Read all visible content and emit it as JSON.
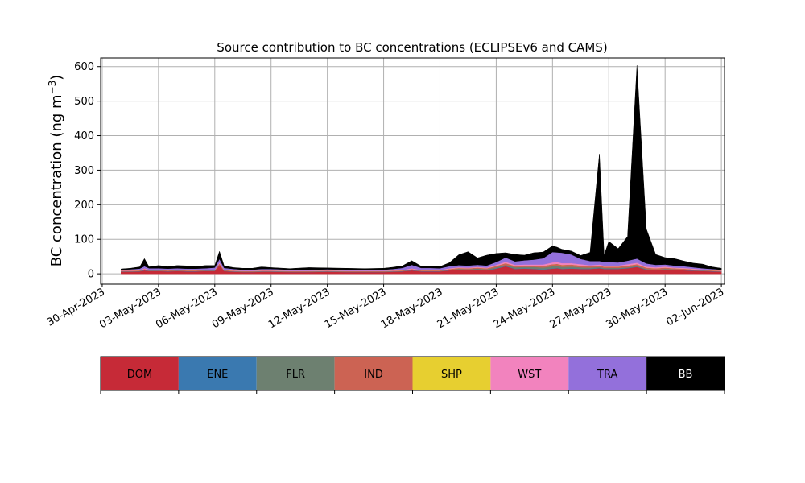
{
  "chart_data": {
    "type": "area",
    "title": "Source contribution to BC concentrations (ECLIPSEv6 and CAMS)",
    "ylabel": "BC concentration (ng m",
    "ylabel_superscript": "−3",
    "ylabel_close": ")",
    "xlabel": "",
    "ylim": [
      -30,
      625
    ],
    "xlim": [
      "2023-04-29T22:00",
      "2023-06-02T04:00"
    ],
    "grid": true,
    "stacked": true,
    "x_ticks": [
      {
        "date": "2023-04-30",
        "label": "30-Apr-2023"
      },
      {
        "date": "2023-05-03",
        "label": "03-May-2023"
      },
      {
        "date": "2023-05-06",
        "label": "06-May-2023"
      },
      {
        "date": "2023-05-09",
        "label": "09-May-2023"
      },
      {
        "date": "2023-05-12",
        "label": "12-May-2023"
      },
      {
        "date": "2023-05-15",
        "label": "15-May-2023"
      },
      {
        "date": "2023-05-18",
        "label": "18-May-2023"
      },
      {
        "date": "2023-05-21",
        "label": "21-May-2023"
      },
      {
        "date": "2023-05-24",
        "label": "24-May-2023"
      },
      {
        "date": "2023-05-27",
        "label": "27-May-2023"
      },
      {
        "date": "2023-05-30",
        "label": "30-May-2023"
      },
      {
        "date": "2023-06-02",
        "label": "02-Jun-2023"
      }
    ],
    "y_ticks": [
      0,
      100,
      200,
      300,
      400,
      500,
      600
    ],
    "x": [
      "2023-05-01T00:00",
      "2023-05-01T12:00",
      "2023-05-02T00:00",
      "2023-05-02T06:00",
      "2023-05-02T12:00",
      "2023-05-03T00:00",
      "2023-05-03T12:00",
      "2023-05-04T00:00",
      "2023-05-04T12:00",
      "2023-05-05T00:00",
      "2023-05-05T12:00",
      "2023-05-06T00:00",
      "2023-05-06T06:00",
      "2023-05-06T12:00",
      "2023-05-07T00:00",
      "2023-05-07T12:00",
      "2023-05-08T00:00",
      "2023-05-08T12:00",
      "2023-05-09T00:00",
      "2023-05-10T00:00",
      "2023-05-11T00:00",
      "2023-05-12T00:00",
      "2023-05-13T00:00",
      "2023-05-14T00:00",
      "2023-05-15T00:00",
      "2023-05-15T12:00",
      "2023-05-16T00:00",
      "2023-05-16T12:00",
      "2023-05-17T00:00",
      "2023-05-17T12:00",
      "2023-05-18T00:00",
      "2023-05-18T12:00",
      "2023-05-19T00:00",
      "2023-05-19T12:00",
      "2023-05-20T00:00",
      "2023-05-20T12:00",
      "2023-05-21T00:00",
      "2023-05-21T12:00",
      "2023-05-22T00:00",
      "2023-05-22T12:00",
      "2023-05-23T00:00",
      "2023-05-23T12:00",
      "2023-05-24T00:00",
      "2023-05-24T06:00",
      "2023-05-24T12:00",
      "2023-05-25T00:00",
      "2023-05-25T12:00",
      "2023-05-26T00:00",
      "2023-05-26T12:00",
      "2023-05-26T18:00",
      "2023-05-27T00:00",
      "2023-05-27T12:00",
      "2023-05-28T00:00",
      "2023-05-28T12:00",
      "2023-05-29T00:00",
      "2023-05-29T12:00",
      "2023-05-30T00:00",
      "2023-05-30T12:00",
      "2023-05-31T00:00",
      "2023-05-31T12:00",
      "2023-06-01T00:00",
      "2023-06-01T12:00",
      "2023-06-02T00:00"
    ],
    "series": [
      {
        "name": "DOM",
        "color": "#c62a37",
        "values": [
          6,
          6,
          7,
          10,
          8,
          8,
          7,
          8,
          7,
          7,
          8,
          8,
          25,
          8,
          6,
          5,
          5,
          6,
          6,
          5,
          5,
          6,
          5,
          5,
          5,
          6,
          7,
          10,
          7,
          7,
          7,
          10,
          12,
          11,
          12,
          10,
          15,
          22,
          14,
          15,
          14,
          12,
          15,
          16,
          14,
          15,
          14,
          14,
          16,
          14,
          14,
          14,
          16,
          20,
          12,
          10,
          12,
          11,
          10,
          9,
          8,
          7,
          6
        ]
      },
      {
        "name": "ENE",
        "color": "#3a79b0",
        "values": [
          1,
          1,
          1,
          1,
          1,
          1,
          1,
          1,
          1,
          1,
          1,
          1,
          1,
          1,
          1,
          1,
          1,
          1,
          1,
          1,
          1,
          1,
          1,
          1,
          1,
          1,
          1,
          1,
          1,
          1,
          1,
          1,
          1,
          1,
          1,
          1,
          1,
          1,
          1,
          1,
          1,
          1,
          1,
          1,
          1,
          1,
          1,
          1,
          1,
          1,
          1,
          1,
          1,
          1,
          1,
          1,
          1,
          1,
          1,
          1,
          1,
          1,
          1
        ]
      },
      {
        "name": "FLR",
        "color": "#6d8070",
        "values": [
          0,
          0,
          0,
          0,
          0,
          0,
          0,
          0,
          0,
          0,
          0,
          0,
          0,
          0,
          0,
          0,
          0,
          0,
          0,
          0,
          0,
          0,
          0,
          0,
          0,
          0,
          0,
          0,
          0,
          0,
          0,
          0,
          1,
          1,
          2,
          2,
          3,
          3,
          4,
          4,
          5,
          5,
          6,
          6,
          5,
          5,
          4,
          3,
          3,
          2,
          2,
          2,
          2,
          2,
          1,
          1,
          1,
          1,
          1,
          0,
          0,
          0,
          0
        ]
      },
      {
        "name": "IND",
        "color": "#cc6353",
        "values": [
          2,
          2,
          2,
          3,
          2,
          2,
          2,
          2,
          2,
          2,
          2,
          2,
          4,
          2,
          2,
          2,
          2,
          2,
          2,
          2,
          2,
          2,
          2,
          2,
          2,
          2,
          2,
          3,
          2,
          2,
          2,
          3,
          3,
          3,
          3,
          3,
          4,
          5,
          4,
          4,
          4,
          5,
          6,
          6,
          6,
          6,
          5,
          4,
          4,
          4,
          4,
          4,
          5,
          5,
          4,
          4,
          4,
          3,
          3,
          3,
          2,
          2,
          2
        ]
      },
      {
        "name": "SHP",
        "color": "#e7cf30",
        "values": [
          0,
          0,
          0,
          0,
          0,
          0,
          0,
          0,
          0,
          0,
          0,
          0,
          0,
          0,
          0,
          0,
          0,
          0,
          0,
          0,
          0,
          0,
          0,
          0,
          0,
          0,
          0,
          0,
          0,
          0,
          0,
          0,
          0,
          0,
          0,
          0,
          0,
          0,
          0,
          0,
          0,
          0,
          0,
          0,
          0,
          0,
          0,
          0,
          0,
          0,
          0,
          0,
          0,
          0,
          0,
          0,
          0,
          0,
          0,
          0,
          0,
          0,
          0
        ]
      },
      {
        "name": "WST",
        "color": "#f283be",
        "values": [
          1,
          1,
          1,
          2,
          1,
          1,
          1,
          1,
          1,
          1,
          1,
          1,
          3,
          1,
          1,
          1,
          1,
          1,
          1,
          1,
          1,
          1,
          1,
          1,
          1,
          1,
          1,
          2,
          1,
          1,
          1,
          2,
          2,
          2,
          2,
          2,
          3,
          4,
          3,
          3,
          3,
          4,
          5,
          5,
          5,
          4,
          4,
          3,
          3,
          3,
          3,
          3,
          4,
          4,
          3,
          3,
          3,
          2,
          2,
          2,
          2,
          1,
          1
        ]
      },
      {
        "name": "TRA",
        "color": "#9370db",
        "values": [
          2,
          3,
          4,
          6,
          4,
          4,
          4,
          4,
          4,
          4,
          4,
          6,
          10,
          5,
          4,
          3,
          3,
          4,
          4,
          3,
          3,
          3,
          3,
          3,
          3,
          4,
          6,
          10,
          6,
          6,
          5,
          6,
          6,
          6,
          6,
          6,
          8,
          12,
          10,
          12,
          14,
          18,
          30,
          28,
          30,
          25,
          15,
          12,
          10,
          10,
          10,
          9,
          10,
          12,
          9,
          7,
          6,
          6,
          5,
          4,
          3,
          3,
          2
        ]
      },
      {
        "name": "BB",
        "color": "#000000",
        "values": [
          2,
          3,
          5,
          22,
          4,
          8,
          6,
          8,
          8,
          6,
          8,
          6,
          22,
          6,
          4,
          4,
          4,
          6,
          4,
          3,
          6,
          4,
          4,
          3,
          4,
          5,
          6,
          12,
          5,
          6,
          5,
          10,
          30,
          40,
          20,
          30,
          25,
          14,
          20,
          15,
          20,
          18,
          18,
          15,
          10,
          10,
          10,
          25,
          310,
          20,
          60,
          40,
          70,
          560,
          100,
          30,
          20,
          20,
          15,
          12,
          12,
          6,
          4
        ]
      }
    ],
    "legend": {
      "placement": "below",
      "items": [
        "DOM",
        "ENE",
        "FLR",
        "IND",
        "SHP",
        "WST",
        "TRA",
        "BB"
      ]
    }
  }
}
